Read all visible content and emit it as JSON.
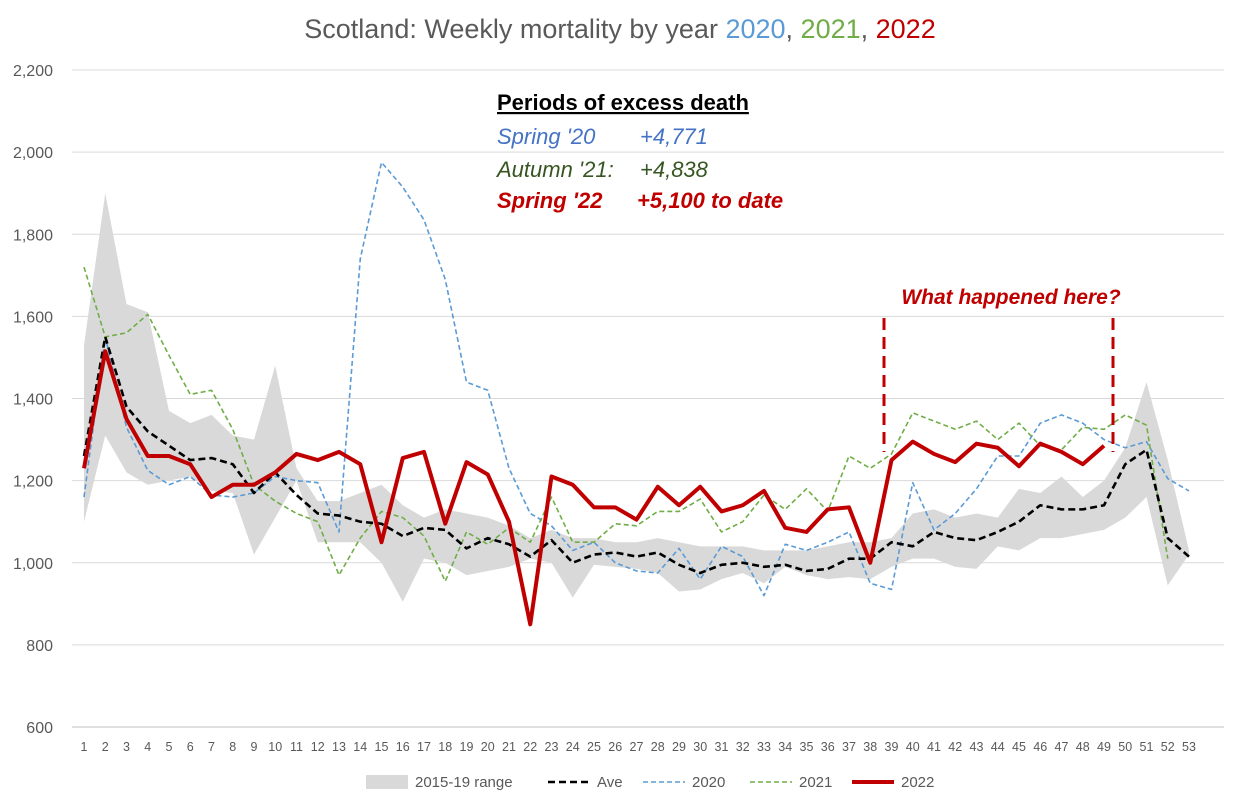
{
  "title": {
    "prefix": "Scotland: Weekly mortality by year ",
    "y2020": "2020",
    "sep1": ", ",
    "y2021": "2021",
    "sep2": ", ",
    "y2022": "2022"
  },
  "annotation": {
    "heading": "Periods of excess death",
    "lines": [
      {
        "period": "Spring '20",
        "value": "+4,771",
        "color": "#4472c4"
      },
      {
        "period": "Autumn '21:",
        "value": "+4,838",
        "color": "#375623"
      },
      {
        "period": "Spring '22",
        "value": "+5,100 to date",
        "color": "#c00000"
      }
    ],
    "callout": "What happened here?"
  },
  "colors": {
    "title": "#595959",
    "y2020": "#5b9bd5",
    "y2021": "#70ad47",
    "y2022": "#c00000",
    "ave": "#000000",
    "range": "#d9d9d9",
    "grid": "#d9d9d9"
  },
  "chart_data": {
    "type": "line",
    "x": [
      1,
      2,
      3,
      4,
      5,
      6,
      7,
      8,
      9,
      10,
      11,
      12,
      13,
      14,
      15,
      16,
      17,
      18,
      19,
      20,
      21,
      22,
      23,
      24,
      25,
      26,
      27,
      28,
      29,
      30,
      31,
      32,
      33,
      34,
      35,
      36,
      37,
      38,
      39,
      40,
      41,
      42,
      43,
      44,
      45,
      46,
      47,
      48,
      49,
      50,
      51,
      52,
      53
    ],
    "ylim": [
      600,
      2200
    ],
    "yticks": [
      "600",
      "800",
      "1,000",
      "1,200",
      "1,400",
      "1,600",
      "1,800",
      "2,000",
      "2,200"
    ],
    "ytick_values": [
      600,
      800,
      1000,
      1200,
      1400,
      1600,
      1800,
      2000,
      2200
    ],
    "grid": true,
    "legend_position": "bottom",
    "range": {
      "name": "2015-19 range",
      "low": [
        1100,
        1310,
        1220,
        1190,
        1200,
        1210,
        1175,
        1170,
        1020,
        1110,
        1200,
        1050,
        1050,
        1050,
        1000,
        905,
        1010,
        1000,
        970,
        980,
        990,
        1010,
        1000,
        915,
        995,
        990,
        985,
        975,
        930,
        935,
        960,
        975,
        950,
        990,
        970,
        960,
        965,
        960,
        990,
        1010,
        1010,
        990,
        985,
        1040,
        1030,
        1060,
        1060,
        1070,
        1080,
        1110,
        1160,
        945,
        1020
      ],
      "high": [
        1530,
        1900,
        1630,
        1610,
        1370,
        1340,
        1360,
        1310,
        1300,
        1480,
        1230,
        1150,
        1150,
        1170,
        1190,
        1140,
        1110,
        1130,
        1120,
        1110,
        1090,
        1060,
        1080,
        1060,
        1060,
        1050,
        1050,
        1060,
        1050,
        1040,
        1040,
        1040,
        1030,
        1030,
        1030,
        1040,
        1050,
        1050,
        1060,
        1120,
        1130,
        1110,
        1120,
        1110,
        1180,
        1170,
        1210,
        1160,
        1200,
        1280,
        1440,
        1250,
        1030
      ]
    },
    "series": [
      {
        "name": "Ave",
        "values": [
          1260,
          1550,
          1380,
          1320,
          1285,
          1250,
          1255,
          1240,
          1170,
          1220,
          1165,
          1120,
          1115,
          1100,
          1095,
          1065,
          1085,
          1080,
          1035,
          1060,
          1045,
          1015,
          1055,
          1000,
          1020,
          1025,
          1015,
          1025,
          995,
          975,
          995,
          1000,
          990,
          995,
          980,
          985,
          1010,
          1010,
          1050,
          1040,
          1075,
          1060,
          1055,
          1075,
          1100,
          1140,
          1130,
          1130,
          1140,
          1240,
          1275,
          1060,
          1015
        ]
      },
      {
        "name": "2020",
        "values": [
          1160,
          1550,
          1330,
          1225,
          1190,
          1210,
          1165,
          1160,
          1170,
          1210,
          1200,
          1195,
          1075,
          1740,
          1975,
          1915,
          1835,
          1690,
          1440,
          1420,
          1230,
          1120,
          1090,
          1030,
          1050,
          1000,
          980,
          975,
          1035,
          960,
          1040,
          1015,
          920,
          1045,
          1030,
          1050,
          1075,
          950,
          935,
          1195,
          1080,
          1120,
          1180,
          1260,
          1260,
          1340,
          1360,
          1340,
          1300,
          1280,
          1295,
          1205,
          1175
        ]
      },
      {
        "name": "2021",
        "values": [
          1720,
          1550,
          1560,
          1605,
          1505,
          1410,
          1420,
          1325,
          1190,
          1150,
          1120,
          1100,
          970,
          1060,
          1125,
          1110,
          1065,
          955,
          1075,
          1045,
          1085,
          1050,
          1160,
          1050,
          1050,
          1095,
          1090,
          1125,
          1125,
          1155,
          1075,
          1100,
          1165,
          1130,
          1180,
          1125,
          1260,
          1230,
          1265,
          1365,
          1345,
          1325,
          1345,
          1300,
          1340,
          1285,
          1275,
          1330,
          1325,
          1360,
          1335,
          1010,
          null
        ]
      },
      {
        "name": "2022",
        "values": [
          1230,
          1515,
          1350,
          1260,
          1260,
          1240,
          1160,
          1190,
          1190,
          1220,
          1265,
          1250,
          1270,
          1240,
          1050,
          1255,
          1270,
          1095,
          1245,
          1215,
          1100,
          850,
          1210,
          1190,
          1135,
          1135,
          1105,
          1185,
          1140,
          1185,
          1125,
          1140,
          1175,
          1085,
          1075,
          1130,
          1135,
          1000,
          1250,
          1295,
          1265,
          1245,
          1290,
          1280,
          1235,
          1290,
          1270,
          1240,
          1285,
          null,
          null,
          null,
          null
        ]
      }
    ]
  },
  "legend": [
    {
      "key": "range",
      "label": "2015-19 range"
    },
    {
      "key": "ave",
      "label": "Ave"
    },
    {
      "key": "y2020",
      "label": "2020"
    },
    {
      "key": "y2021",
      "label": "2021"
    },
    {
      "key": "y2022",
      "label": "2022"
    }
  ]
}
